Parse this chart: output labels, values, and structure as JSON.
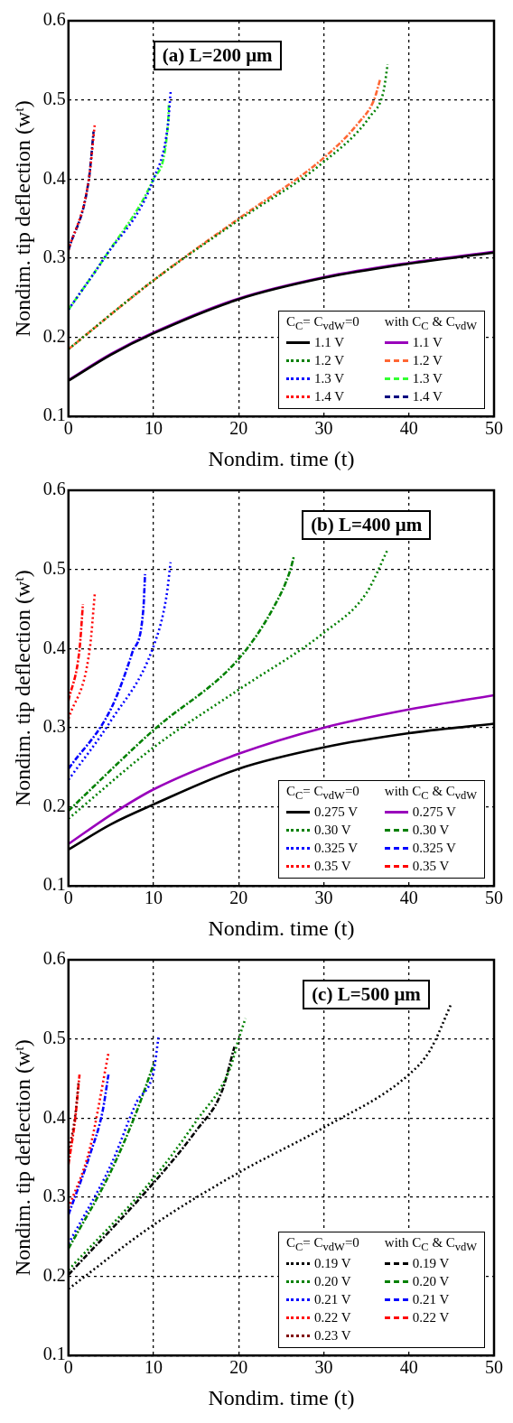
{
  "chart_data": [
    {
      "type": "line",
      "title": "(a) L=200 μm",
      "xlabel": "Nondim. time (t)",
      "ylabel": "Nondim. tip deflection (wᵗ)",
      "xlim": [
        0,
        50
      ],
      "xticks": [
        0,
        10,
        20,
        30,
        40,
        50
      ],
      "ylim": [
        0.1,
        0.6
      ],
      "yticks": [
        0.1,
        0.2,
        0.3,
        0.4,
        0.5,
        0.6
      ],
      "grid": true,
      "legend": "bottom right",
      "marker": "none",
      "annotations": [
        "C$_{C}$= C$_{vdW}$=0",
        "with C$_{C}$ & C$_{vdW}$"
      ],
      "series": [
        {
          "name": "1.1 V",
          "color": "#000000",
          "line_style": "solid",
          "x": [
            0,
            5,
            10,
            20,
            30,
            40,
            50
          ],
          "values": [
            0.145,
            0.178,
            0.205,
            0.248,
            0.275,
            0.293,
            0.307
          ]
        },
        {
          "name": "1.2 V",
          "color": "#008000",
          "line_style": "dotted",
          "x": [
            0,
            10,
            20,
            29.8,
            35.5,
            37,
            37.5
          ],
          "values": [
            0.185,
            0.272,
            0.348,
            0.42,
            0.48,
            0.51,
            0.545
          ]
        },
        {
          "name": "1.3 V",
          "color": "#0000ff",
          "line_style": "dotted",
          "x": [
            0,
            4.2,
            10,
            11.7,
            12
          ],
          "values": [
            0.235,
            0.3,
            0.4,
            0.47,
            0.51
          ]
        },
        {
          "name": "1.4 V",
          "color": "#ff0000",
          "line_style": "dotted",
          "x": [
            0,
            2.4,
            3.1
          ],
          "values": [
            0.31,
            0.4,
            0.47
          ]
        },
        {
          "name": "1.1 V",
          "color": "#9900bb",
          "line_style": "solid",
          "x": [
            0,
            5,
            10,
            20,
            30,
            40,
            50
          ],
          "values": [
            0.146,
            0.179,
            0.206,
            0.249,
            0.276,
            0.294,
            0.308
          ]
        },
        {
          "name": "1.2 V",
          "color": "#ff6633",
          "line_style": "dashed",
          "x": [
            0,
            10,
            20,
            29.8,
            34,
            35.9,
            36.6
          ],
          "values": [
            0.185,
            0.272,
            0.35,
            0.425,
            0.47,
            0.5,
            0.525
          ]
        },
        {
          "name": "1.3 V",
          "color": "#33ff33",
          "line_style": "dashed",
          "x": [
            0,
            4.2,
            10,
            11.7,
            11.8
          ],
          "values": [
            0.235,
            0.3,
            0.4,
            0.47,
            0.496
          ]
        },
        {
          "name": "1.4 V",
          "color": "#000080",
          "line_style": "dashed",
          "x": [
            0,
            2.4,
            2.95
          ],
          "values": [
            0.31,
            0.4,
            0.46
          ]
        }
      ]
    },
    {
      "type": "line",
      "title": "(b) L=400 μm",
      "xlabel": "Nondim. time (t)",
      "ylabel": "Nondim. tip deflection (wᵗ)",
      "xlim": [
        0,
        50
      ],
      "xticks": [
        0,
        10,
        20,
        30,
        40,
        50
      ],
      "ylim": [
        0.1,
        0.6
      ],
      "yticks": [
        0.1,
        0.2,
        0.3,
        0.4,
        0.5,
        0.6
      ],
      "grid": true,
      "legend": "bottom right",
      "marker": "none",
      "annotations": [
        "C$_{C}$= C$_{vdW}$=0",
        "with C$_{C}$ & C$_{vdW}$"
      ],
      "series": [
        {
          "name": "0.275 V",
          "color": "#000000",
          "line_style": "solid",
          "x": [
            0,
            5,
            10,
            20,
            30,
            40,
            50
          ],
          "values": [
            0.146,
            0.178,
            0.203,
            0.248,
            0.275,
            0.293,
            0.305
          ]
        },
        {
          "name": "0.30 V",
          "color": "#008000",
          "line_style": "dotted",
          "x": [
            0,
            10,
            20,
            30,
            35,
            37.5
          ],
          "values": [
            0.185,
            0.275,
            0.348,
            0.42,
            0.47,
            0.525
          ]
        },
        {
          "name": "0.325 V",
          "color": "#0000ff",
          "line_style": "dotted",
          "x": [
            0,
            5,
            10,
            11.5,
            12
          ],
          "values": [
            0.234,
            0.309,
            0.403,
            0.465,
            0.509
          ]
        },
        {
          "name": "0.35 V",
          "color": "#ff0000",
          "line_style": "dotted",
          "x": [
            0,
            2.5,
            3.1
          ],
          "values": [
            0.311,
            0.399,
            0.47
          ]
        },
        {
          "name": "0.275 V",
          "color": "#9900bb",
          "line_style": "solid",
          "x": [
            0,
            5,
            10,
            20,
            30,
            40,
            50
          ],
          "values": [
            0.153,
            0.19,
            0.222,
            0.267,
            0.3,
            0.323,
            0.341
          ]
        },
        {
          "name": "0.30 V",
          "color": "#008000",
          "line_style": "dashed",
          "x": [
            0,
            10,
            20,
            24,
            26,
            26.5
          ],
          "values": [
            0.195,
            0.297,
            0.387,
            0.45,
            0.497,
            0.517
          ]
        },
        {
          "name": "0.325 V",
          "color": "#0000ff",
          "line_style": "dashed",
          "x": [
            0,
            5,
            7.5,
            8.8,
            9
          ],
          "values": [
            0.248,
            0.324,
            0.395,
            0.45,
            0.494
          ]
        },
        {
          "name": "0.35 V",
          "color": "#ff0000",
          "line_style": "dashed",
          "x": [
            0,
            1.3,
            1.7
          ],
          "values": [
            0.334,
            0.399,
            0.456
          ]
        }
      ]
    },
    {
      "type": "line",
      "title": "(c) L=500 μm",
      "xlabel": "Nondim. time (t)",
      "ylabel": "Nondim. tip deflection (wᵗ)",
      "xlim": [
        0,
        50
      ],
      "xticks": [
        0,
        10,
        20,
        30,
        40,
        50
      ],
      "ylim": [
        0.1,
        0.6
      ],
      "yticks": [
        0.1,
        0.2,
        0.3,
        0.4,
        0.5,
        0.6
      ],
      "grid": true,
      "legend": "bottom right",
      "marker": "none",
      "annotations": [
        "C$_{C}$= C$_{vdW}$=0",
        "with C$_{C}$ & C$_{vdW}$"
      ],
      "series": [
        {
          "name": "0.19 V",
          "color": "#000000",
          "line_style": "dotted",
          "x": [
            0,
            10,
            20,
            30,
            40,
            42.5,
            45
          ],
          "values": [
            0.184,
            0.265,
            0.331,
            0.388,
            0.455,
            0.486,
            0.545
          ]
        },
        {
          "name": "0.20 V",
          "color": "#008000",
          "line_style": "dotted",
          "x": [
            0,
            10,
            15,
            19,
            20,
            20.8
          ],
          "values": [
            0.208,
            0.324,
            0.396,
            0.463,
            0.5,
            0.526
          ]
        },
        {
          "name": "0.21 V",
          "color": "#0000ff",
          "line_style": "dotted",
          "x": [
            0,
            5,
            8,
            10,
            10.6
          ],
          "values": [
            0.241,
            0.341,
            0.42,
            0.459,
            0.504
          ]
        },
        {
          "name": "0.22 V",
          "color": "#ff0000",
          "line_style": "dotted",
          "x": [
            0,
            2.5,
            4.7
          ],
          "values": [
            0.286,
            0.361,
            0.482
          ]
        },
        {
          "name": "0.23 V",
          "color": "#800000",
          "line_style": "dotted",
          "x": [
            0,
            0.8,
            1.2
          ],
          "values": [
            0.357,
            0.404,
            0.447
          ]
        },
        {
          "name": "0.19 V",
          "color": "#000000",
          "line_style": "dashed",
          "x": [
            0,
            10,
            15,
            18,
            19.5
          ],
          "values": [
            0.202,
            0.318,
            0.384,
            0.433,
            0.49
          ]
        },
        {
          "name": "0.20 V",
          "color": "#008000",
          "line_style": "dashed",
          "x": [
            0,
            5,
            8,
            10.1
          ],
          "values": [
            0.235,
            0.333,
            0.408,
            0.471
          ]
        },
        {
          "name": "0.21 V",
          "color": "#0000ff",
          "line_style": "dashed",
          "x": [
            0,
            2.5,
            4,
            4.7
          ],
          "values": [
            0.278,
            0.353,
            0.408,
            0.455
          ]
        },
        {
          "name": "0.22 V",
          "color": "#ff0000",
          "line_style": "dashed",
          "x": [
            0,
            0.8,
            1.3
          ],
          "values": [
            0.341,
            0.4,
            0.455
          ]
        }
      ]
    }
  ]
}
